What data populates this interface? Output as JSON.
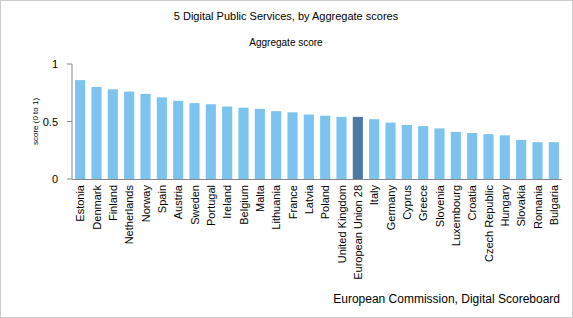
{
  "chart_data": {
    "type": "bar",
    "title": "5 Digital Public Services, by Aggregate scores",
    "subtitle": "Aggregate score",
    "y_label": "score (0 to 1)",
    "source": "European Commission, Digital Scoreboard",
    "categories": [
      "Estonia",
      "Denmark",
      "Finland",
      "Netherlands",
      "Norway",
      "Spain",
      "Austria",
      "Sweden",
      "Portugal",
      "Ireland",
      "Belgium",
      "Malta",
      "Lithuania",
      "France",
      "Latvia",
      "Poland",
      "United Kingdom",
      "European Union 28",
      "Italy",
      "Germany",
      "Cyprus",
      "Greece",
      "Slovenia",
      "Luxembourg",
      "Croatia",
      "Czech Republic",
      "Hungary",
      "Slovakia",
      "Romania",
      "Bulgaria"
    ],
    "values": [
      0.86,
      0.8,
      0.78,
      0.76,
      0.74,
      0.71,
      0.68,
      0.66,
      0.65,
      0.63,
      0.62,
      0.61,
      0.59,
      0.58,
      0.56,
      0.55,
      0.54,
      0.54,
      0.52,
      0.49,
      0.47,
      0.46,
      0.44,
      0.41,
      0.4,
      0.39,
      0.38,
      0.34,
      0.32,
      0.32
    ],
    "colors": [
      "#7dc3f0",
      "#7dc3f0",
      "#7dc3f0",
      "#7dc3f0",
      "#7dc3f0",
      "#7dc3f0",
      "#7dc3f0",
      "#7dc3f0",
      "#7dc3f0",
      "#7dc3f0",
      "#7dc3f0",
      "#7dc3f0",
      "#7dc3f0",
      "#7dc3f0",
      "#7dc3f0",
      "#7dc3f0",
      "#7dc3f0",
      "#4c7ba3",
      "#7dc3f0",
      "#7dc3f0",
      "#7dc3f0",
      "#7dc3f0",
      "#7dc3f0",
      "#7dc3f0",
      "#7dc3f0",
      "#7dc3f0",
      "#7dc3f0",
      "#7dc3f0",
      "#7dc3f0",
      "#7dc3f0"
    ],
    "ylim": [
      0,
      1
    ],
    "yticks": [
      0,
      0.5,
      1
    ],
    "grid": false
  }
}
